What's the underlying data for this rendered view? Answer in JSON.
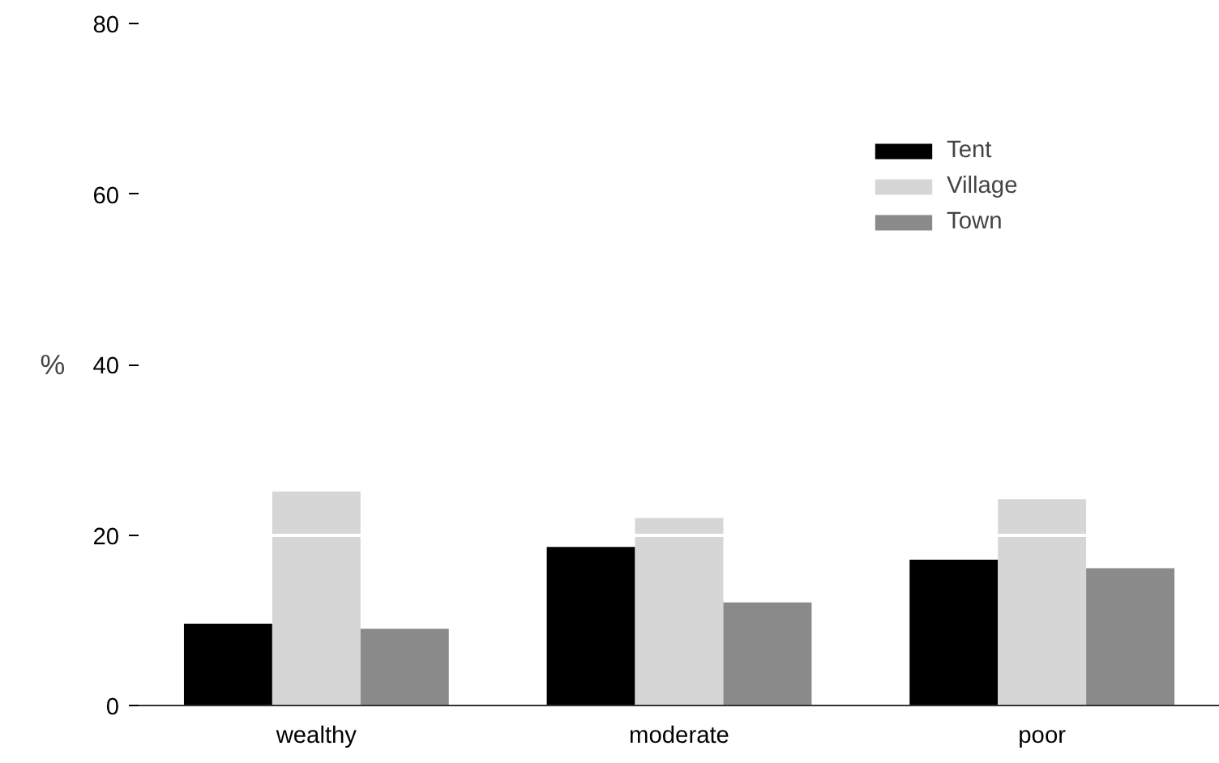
{
  "chart_data": {
    "type": "bar",
    "ylabel": "%",
    "categories": [
      "wealthy",
      "moderate",
      "poor"
    ],
    "series": [
      {
        "name": "Tent",
        "color": "#000000",
        "values": [
          9.6,
          18.6,
          17.1
        ]
      },
      {
        "name": "Village",
        "color": "#d6d6d6",
        "values": [
          25.1,
          22.0,
          24.2
        ]
      },
      {
        "name": "Town",
        "color": "#8a8a8a",
        "values": [
          9.0,
          12.1,
          16.1
        ]
      }
    ],
    "ylim": [
      0,
      80
    ],
    "yticks": [
      0,
      20,
      40,
      60,
      80
    ],
    "grid": "y",
    "legend": "top right"
  }
}
